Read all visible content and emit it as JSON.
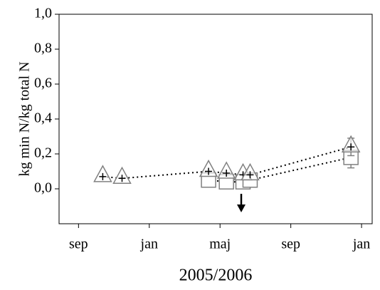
{
  "chart_data": {
    "type": "scatter",
    "y_label": "kg min N/kg total N",
    "x_label": "2005/2006",
    "xlim": [
      -1.1,
      16.6
    ],
    "xticks": [
      {
        "value": 0,
        "label": "sep"
      },
      {
        "value": 4,
        "label": "jan"
      },
      {
        "value": 8,
        "label": "maj"
      },
      {
        "value": 12,
        "label": "sep"
      },
      {
        "value": 16,
        "label": "jan"
      }
    ],
    "ylim": [
      -0.2,
      1.0
    ],
    "yticks": [
      {
        "value": 0,
        "label": "0,0"
      },
      {
        "value": 0.2,
        "label": "0,2"
      },
      {
        "value": 0.4,
        "label": "0,4"
      },
      {
        "value": 0.6,
        "label": "0,6"
      },
      {
        "value": 0.8,
        "label": "0,8"
      },
      {
        "value": 1.0,
        "label": "1,0"
      }
    ],
    "x": [
      1.37,
      2.46,
      7.35,
      8.36,
      9.3,
      9.7,
      15.4
    ],
    "series": [
      {
        "marker": "square",
        "color": "#808080",
        "values": [
          null,
          null,
          0.05,
          0.04,
          0.04,
          0.05,
          0.18
        ],
        "errors": [
          null,
          null,
          null,
          null,
          null,
          null,
          0.06
        ]
      },
      {
        "marker": "triangle",
        "color": "#808080",
        "values": [
          0.07,
          0.06,
          0.1,
          0.09,
          0.08,
          0.08,
          0.24
        ],
        "errors": [
          null,
          null,
          null,
          null,
          null,
          null,
          0.05
        ]
      }
    ]
  }
}
